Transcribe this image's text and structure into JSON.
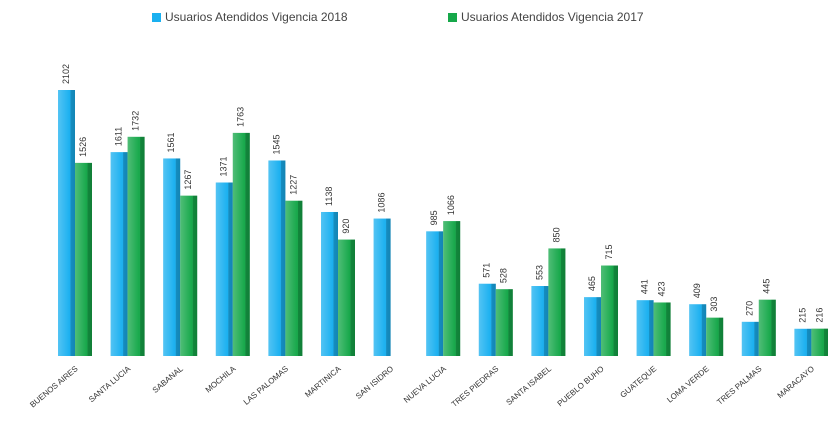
{
  "chart_data": {
    "type": "bar",
    "categories": [
      "BUENOS AIRES",
      "SANTA LUCIA",
      "SABANAL",
      "MOCHILA",
      "LAS PALOMAS",
      "MARTINICA",
      "SAN ISIDRO",
      "NUEVA LUCIA",
      "TRES PIEDRAS",
      "SANTA ISABEL",
      "PUEBLO BUHO",
      "GUATEQUE",
      "LOMA VERDE",
      "TRES PALMAS",
      "MARACAYO"
    ],
    "series": [
      {
        "name": "Usuarios Atendidos Vigencia 2018",
        "color": "#1ab0f0",
        "values": [
          2102,
          1611,
          1561,
          1371,
          1545,
          1138,
          1086,
          985,
          571,
          553,
          465,
          441,
          409,
          270,
          215
        ]
      },
      {
        "name": "Usuarios Atendidos Vigencia 2017",
        "color": "#16a84a",
        "values": [
          1526,
          1732,
          1267,
          1763,
          1227,
          920,
          null,
          1066,
          528,
          850,
          715,
          423,
          303,
          445,
          216
        ]
      }
    ],
    "legend": "top"
  }
}
